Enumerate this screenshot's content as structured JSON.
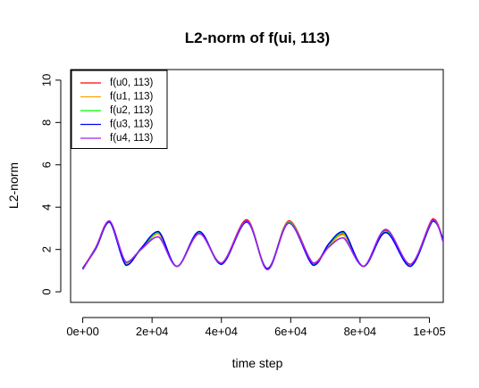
{
  "chart_data": {
    "type": "line",
    "title": "L2-norm of f(ui, 113)",
    "xlabel": "time step",
    "ylabel": "L2-norm",
    "xlim": [
      -3500,
      104000
    ],
    "ylim": [
      -0.5,
      10.5
    ],
    "x_ticks": [
      0,
      20000,
      40000,
      60000,
      80000,
      100000
    ],
    "x_tick_labels": [
      "0e+00",
      "2e+04",
      "4e+04",
      "6e+04",
      "8e+04",
      "1e+05"
    ],
    "y_ticks": [
      0,
      2,
      4,
      6,
      8,
      10
    ],
    "y_tick_labels": [
      "0",
      "2",
      "4",
      "6",
      "8",
      "10"
    ],
    "grid": false,
    "legend_position": "top-left",
    "series": [
      {
        "name": "f(u0, 113)",
        "color": "#ff0000",
        "x": [
          0,
          3800,
          7700,
          12500,
          16800,
          21800,
          27200,
          33600,
          40000,
          47300,
          53300,
          59500,
          66500,
          70900,
          75200,
          81000,
          87400,
          94500,
          101000,
          104000
        ],
        "y": [
          1.1,
          2.1,
          3.35,
          1.35,
          2.0,
          2.75,
          1.2,
          2.8,
          1.35,
          3.4,
          1.05,
          3.35,
          1.35,
          2.2,
          2.75,
          1.2,
          2.9,
          1.25,
          3.45,
          2.4
        ]
      },
      {
        "name": "f(u1, 113)",
        "color": "#ffa500",
        "x": [
          0,
          3800,
          7700,
          12500,
          16800,
          21800,
          27200,
          33600,
          40000,
          47300,
          53300,
          59500,
          66500,
          70900,
          75200,
          81000,
          87400,
          94500,
          101000,
          104000
        ],
        "y": [
          1.1,
          2.05,
          3.3,
          1.35,
          2.0,
          2.75,
          1.2,
          2.75,
          1.35,
          3.35,
          1.05,
          3.3,
          1.3,
          2.15,
          2.7,
          1.2,
          2.85,
          1.25,
          3.4,
          2.4
        ]
      },
      {
        "name": "f(u2, 113)",
        "color": "#00ff00",
        "x": [
          0,
          3800,
          7700,
          12500,
          16800,
          21800,
          27200,
          33600,
          40000,
          47300,
          53300,
          59500,
          66500,
          70900,
          75200,
          81000,
          87400,
          94500,
          101000,
          104000
        ],
        "y": [
          1.1,
          2.05,
          3.3,
          1.3,
          2.0,
          2.8,
          1.2,
          2.8,
          1.3,
          3.35,
          1.05,
          3.3,
          1.3,
          2.2,
          2.8,
          1.2,
          2.85,
          1.2,
          3.35,
          2.45
        ]
      },
      {
        "name": "f(u3, 113)",
        "color": "#0000ff",
        "x": [
          0,
          3800,
          7700,
          12500,
          16800,
          21800,
          27200,
          33600,
          40000,
          47300,
          53300,
          59500,
          66500,
          70900,
          75200,
          81000,
          87400,
          94500,
          101000,
          104000
        ],
        "y": [
          1.1,
          2.05,
          3.3,
          1.25,
          2.05,
          2.85,
          1.2,
          2.85,
          1.3,
          3.3,
          1.1,
          3.25,
          1.25,
          2.25,
          2.85,
          1.2,
          2.8,
          1.2,
          3.35,
          2.45
        ]
      },
      {
        "name": "f(u4, 113)",
        "color": "#a020f0",
        "x": [
          0,
          3800,
          7700,
          12500,
          16800,
          21800,
          27200,
          33600,
          40000,
          47300,
          53300,
          59500,
          66500,
          70900,
          75200,
          81000,
          87400,
          94500,
          101000,
          104000
        ],
        "y": [
          1.05,
          2.1,
          3.35,
          1.4,
          2.0,
          2.6,
          1.2,
          2.75,
          1.35,
          3.35,
          1.05,
          3.25,
          1.35,
          2.1,
          2.55,
          1.2,
          2.95,
          1.3,
          3.4,
          2.35
        ]
      }
    ]
  }
}
